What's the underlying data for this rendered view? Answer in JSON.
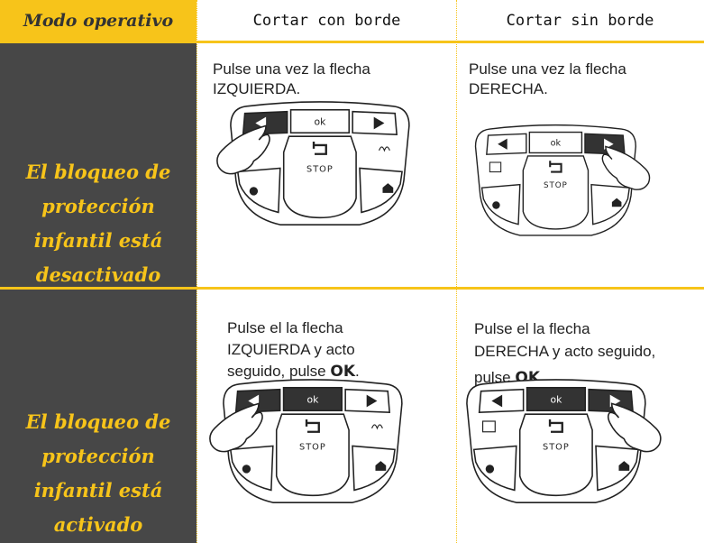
{
  "table": {
    "header": [
      "Modo operativo",
      "Cortar con borde",
      "Cortar sin borde"
    ],
    "rows": [
      {
        "label": [
          "El bloqueo de",
          "protección",
          "infantil está",
          "desactivado"
        ],
        "cells": [
          {
            "lines": [
              "Pulse una vez la flecha",
              "IZQUIERDA."
            ]
          },
          {
            "lines": [
              "Pulse una vez la flecha",
              "DERECHA."
            ]
          }
        ]
      },
      {
        "label": [
          "El bloqueo de",
          "protección",
          "infantil está",
          "activado"
        ],
        "cells": [
          {
            "lines": [
              "Pulse el la flecha",
              "IZQUIERDA y acto"
            ],
            "last": "seguido, pulse ",
            "bold": "OK",
            "end": "."
          },
          {
            "lines": [
              "Pulse el la flecha",
              "DERECHA  y acto seguido,"
            ],
            "last": "pulse ",
            "bold": "OK",
            "end": "."
          }
        ]
      }
    ]
  },
  "keypad": {
    "ok": "ok",
    "stop": "STOP"
  }
}
